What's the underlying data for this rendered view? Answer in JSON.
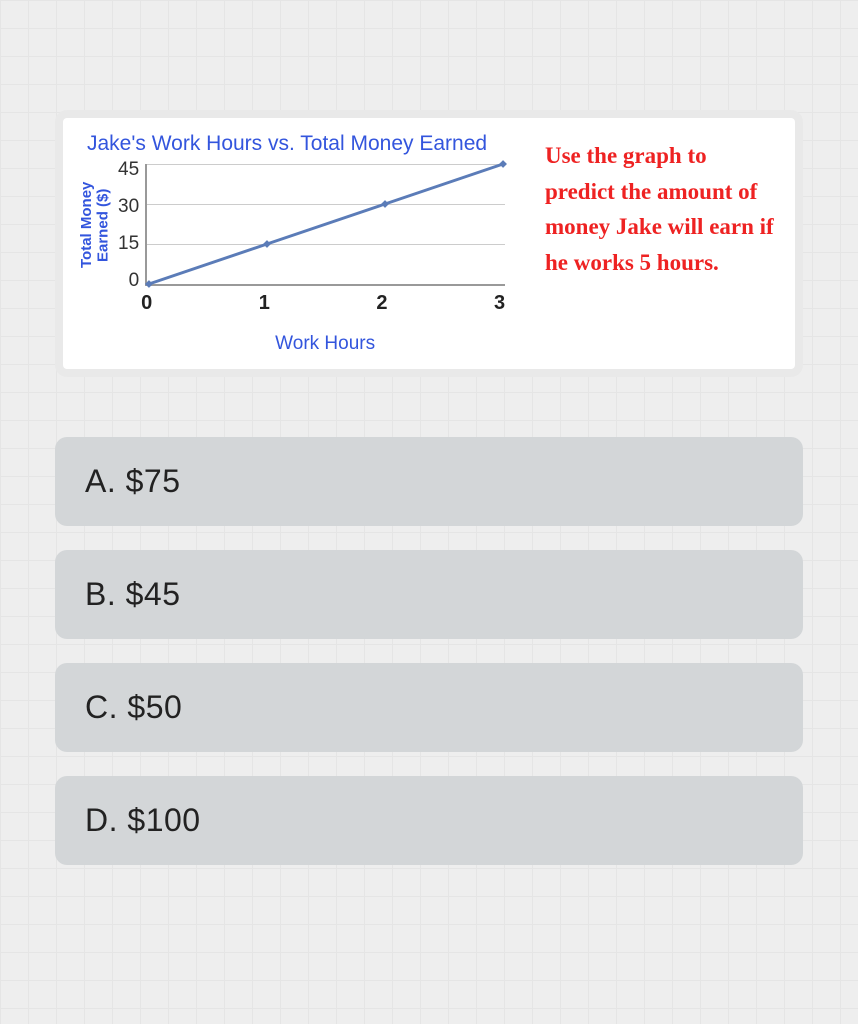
{
  "chart": {
    "type": "line",
    "title": "Jake's Work Hours vs. Total Money Earned",
    "y_axis_label": "Total Money Earned ($)",
    "x_axis_label": "Work Hours",
    "x_values": [
      0,
      1,
      2,
      3
    ],
    "y_values": [
      0,
      15,
      30,
      45
    ],
    "y_ticks": [
      "45",
      "30",
      "15",
      "0"
    ],
    "x_ticks": [
      "0",
      "1",
      "2",
      "3"
    ],
    "xlim": [
      0,
      3
    ],
    "ylim": [
      0,
      45
    ],
    "ytick_step": 15,
    "line_color": "#5b7cb8",
    "marker_color": "#5b7cb8",
    "marker_style": "diamond",
    "marker_size": 4,
    "line_width": 3,
    "grid_color": "#cccccc",
    "axis_color": "#999999",
    "background_color": "#ffffff",
    "title_color": "#3355dd",
    "axis_label_color": "#3355dd",
    "tick_color": "#333333",
    "title_fontsize": 21,
    "axis_label_fontsize": 17,
    "tick_fontsize": 19
  },
  "instruction": "Use the graph to predict the amount of money Jake will earn if he works 5 hours.",
  "instruction_color": "#ee2222",
  "instruction_fontsize": 23,
  "options": [
    {
      "letter": "A",
      "text": "$75"
    },
    {
      "letter": "B",
      "text": "$45"
    },
    {
      "letter": "C",
      "text": "$50"
    },
    {
      "letter": "D",
      "text": "$100"
    }
  ],
  "option_bg_color": "#d3d6d8",
  "page_bg_color": "#eeeeee"
}
